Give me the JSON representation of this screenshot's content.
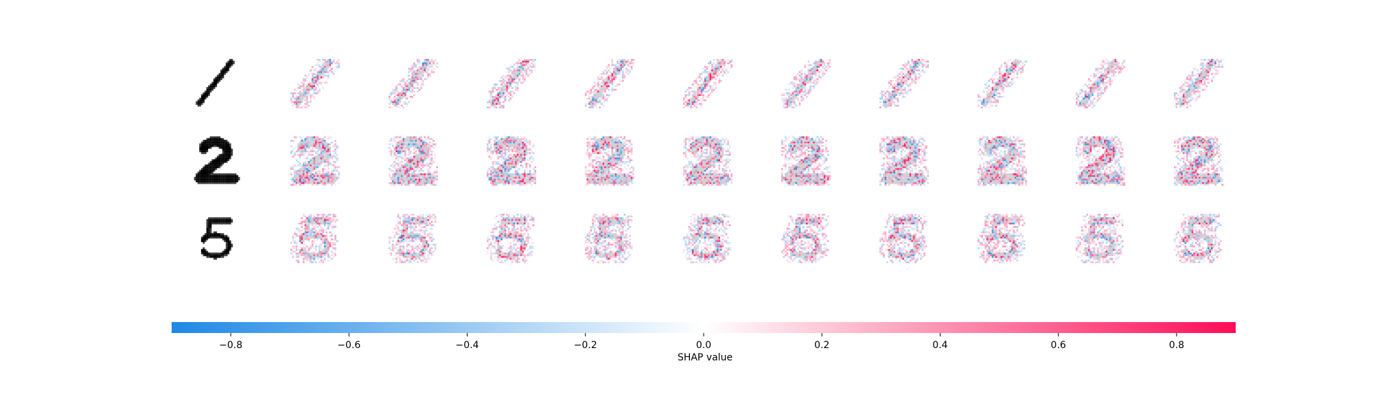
{
  "chart_data": {
    "type": "heatmap",
    "description_kind": "shap-image-plot",
    "rows": [
      {
        "digit": "1",
        "input_name": "input-digit-1",
        "shape": "one"
      },
      {
        "digit": "2",
        "input_name": "input-digit-2",
        "shape": "two"
      },
      {
        "digit": "5",
        "input_name": "input-digit-5",
        "shape": "five"
      }
    ],
    "class_columns": 10,
    "colorbar": {
      "label": "SHAP value",
      "range": [
        -0.9,
        0.9
      ],
      "ticks": [
        -0.8,
        -0.6,
        -0.4,
        -0.2,
        0.0,
        0.2,
        0.4,
        0.6,
        0.8
      ],
      "tick_labels": [
        "−0.8",
        "−0.6",
        "−0.4",
        "−0.2",
        "0.0",
        "0.2",
        "0.4",
        "0.6",
        "0.8"
      ],
      "negative_color": "#1e88e5",
      "neutral_color": "#ffffff",
      "positive_color": "#ff0d57"
    },
    "grid": false,
    "legend": "bottom"
  }
}
